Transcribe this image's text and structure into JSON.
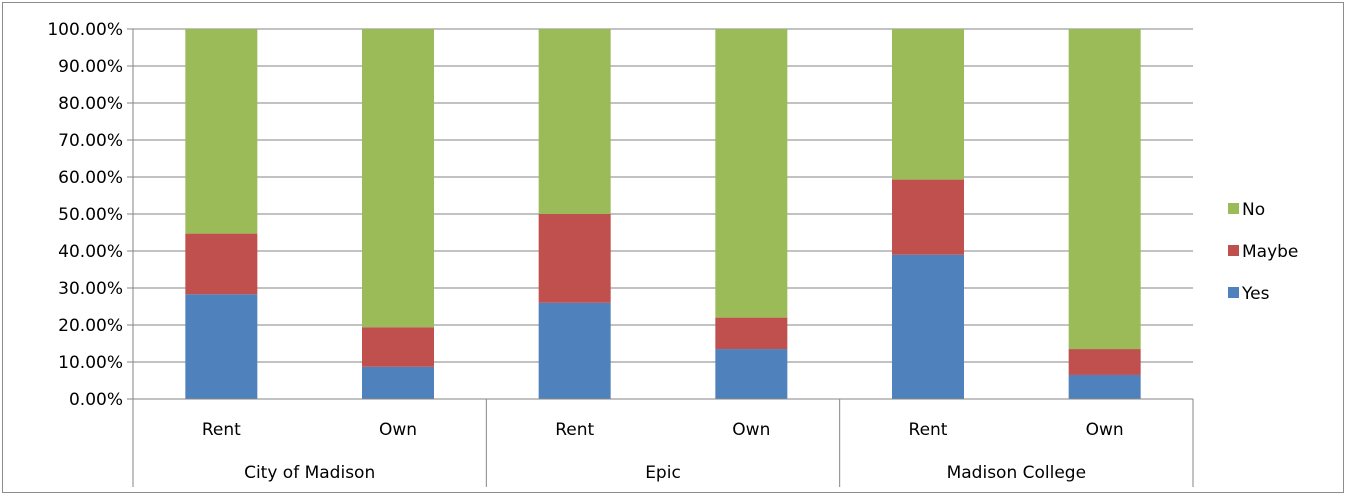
{
  "chart_data": {
    "type": "bar",
    "stacked": true,
    "percent": true,
    "title": "",
    "xlabel": "",
    "ylabel": "",
    "ylim": [
      0,
      1
    ],
    "yticks": [
      "0.00%",
      "10.00%",
      "20.00%",
      "30.00%",
      "40.00%",
      "50.00%",
      "60.00%",
      "70.00%",
      "80.00%",
      "90.00%",
      "100.00%"
    ],
    "grid": true,
    "legend_position": "right",
    "groups": [
      {
        "label": "City of Madison",
        "categories": [
          "Rent",
          "Own"
        ]
      },
      {
        "label": "Epic",
        "categories": [
          "Rent",
          "Own"
        ]
      },
      {
        "label": "Madison College",
        "categories": [
          "Rent",
          "Own"
        ]
      }
    ],
    "series": [
      {
        "name": "Yes",
        "color": "#4f81bd",
        "values": [
          0.283,
          0.087,
          0.26,
          0.135,
          0.39,
          0.065
        ]
      },
      {
        "name": "Maybe",
        "color": "#c0504d",
        "values": [
          0.164,
          0.107,
          0.24,
          0.085,
          0.203,
          0.07
        ]
      },
      {
        "name": "No",
        "color": "#9bbb59",
        "values": [
          0.553,
          0.806,
          0.5,
          0.78,
          0.407,
          0.865
        ]
      }
    ],
    "legend_order": [
      "No",
      "Maybe",
      "Yes"
    ]
  }
}
